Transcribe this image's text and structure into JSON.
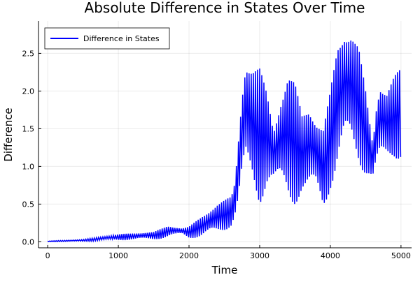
{
  "chart_data": {
    "type": "line",
    "title": "Absolute Difference in States Over Time",
    "xlabel": "Time",
    "ylabel": "Difference",
    "xlim": [
      -130,
      5150
    ],
    "ylim": [
      -0.08,
      2.93
    ],
    "xticks": [
      0,
      1000,
      2000,
      3000,
      4000,
      5000
    ],
    "xtick_labels": [
      "0",
      "1000",
      "2000",
      "3000",
      "4000",
      "5000"
    ],
    "yticks": [
      0,
      0.5,
      1,
      1.5,
      2,
      2.5
    ],
    "ytick_labels": [
      "0.0",
      "0.5",
      "1.0",
      "1.5",
      "2.0",
      "2.5"
    ],
    "grid": true,
    "legend": {
      "position": "top-left",
      "entries": [
        "Difference in States"
      ]
    },
    "series": [
      {
        "name": "Difference in States",
        "color": "#0000ff",
        "oscillation_period": 30,
        "envelope": {
          "t": [
            0,
            500,
            1000,
            1500,
            1700,
            1900,
            2000,
            2200,
            2400,
            2600,
            2650,
            2700,
            2750,
            2800,
            2900,
            3000,
            3100,
            3200,
            3300,
            3400,
            3500,
            3600,
            3700,
            3800,
            3900,
            4000,
            4100,
            4200,
            4300,
            4400,
            4500,
            4600,
            4650,
            4700,
            4800,
            4900,
            5000
          ],
          "low": [
            0,
            0.005,
            0.02,
            0.03,
            0.05,
            0.1,
            0.05,
            0.05,
            0.1,
            0.2,
            0.3,
            0.4,
            0.6,
            0.8,
            0.7,
            0.5,
            0.7,
            0.7,
            0.6,
            0.5,
            0.5,
            0.6,
            0.5,
            0.6,
            0.4,
            0.7,
            0.9,
            1.1,
            1.1,
            1.0,
            0.9,
            0.8,
            0.9,
            0.9,
            1.0,
            1.1,
            1.1
          ],
          "high": [
            0.01,
            0.03,
            0.1,
            0.13,
            0.21,
            0.18,
            0.2,
            0.35,
            0.5,
            0.6,
            0.8,
            1.4,
            2.0,
            2.4,
            2.3,
            2.3,
            2.0,
            1.5,
            1.9,
            2.2,
            2.1,
            1.7,
            1.8,
            1.6,
            1.5,
            2.0,
            2.6,
            2.8,
            2.8,
            2.6,
            2.0,
            1.3,
            1.8,
            2.1,
            2.0,
            2.2,
            2.3
          ]
        }
      }
    ]
  }
}
